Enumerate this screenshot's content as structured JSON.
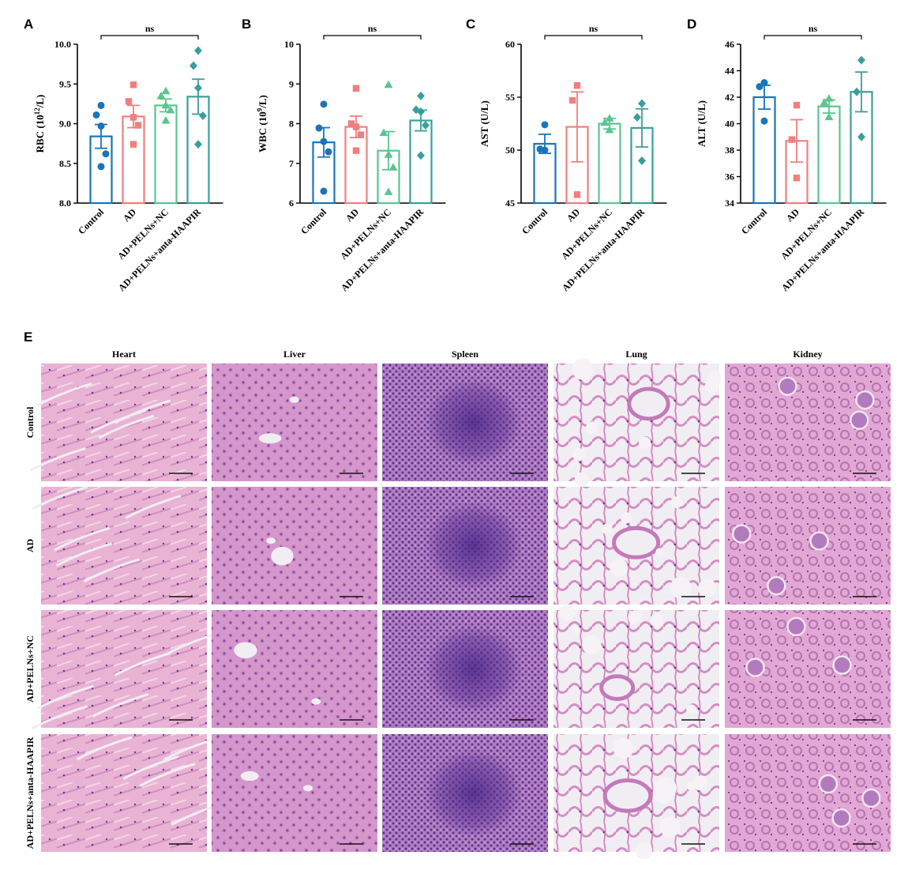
{
  "chart_data": [
    {
      "type": "bar",
      "panel": "A",
      "ylabel_main": "RBC (10",
      "ylabel_sup": "12",
      "ylabel_end": "/L)",
      "ylim": [
        8.0,
        10.0
      ],
      "yticks": [
        "8.0",
        "8.5",
        "9.0",
        "9.5",
        "10.0"
      ],
      "categories": [
        "Control",
        "AD",
        "AD+PELNs+NC",
        "AD+PELNs+anta-HAAPIR"
      ],
      "means": [
        8.84,
        9.09,
        9.23,
        9.34
      ],
      "sem": [
        0.15,
        0.14,
        0.08,
        0.22
      ],
      "points": [
        [
          9.23,
          9.11,
          8.97,
          8.62,
          8.46
        ],
        [
          9.49,
          9.28,
          9.08,
          8.98,
          8.74
        ],
        [
          9.41,
          9.35,
          9.23,
          9.17,
          9.04
        ],
        [
          9.92,
          9.73,
          9.45,
          9.1,
          8.74
        ]
      ],
      "significance": "ns"
    },
    {
      "type": "bar",
      "panel": "B",
      "ylabel_main": "WBC (10",
      "ylabel_sup": "9",
      "ylabel_end": "/L)",
      "ylim": [
        6,
        10
      ],
      "yticks": [
        "6",
        "7",
        "8",
        "9",
        "10"
      ],
      "categories": [
        "Control",
        "AD",
        "AD+PELNs+NC",
        "AD+PELNs+anta-HAAPIR"
      ],
      "means": [
        7.53,
        7.92,
        7.32,
        8.08
      ],
      "sem": [
        0.37,
        0.27,
        0.48,
        0.26
      ],
      "points": [
        [
          8.49,
          7.89,
          7.55,
          7.29,
          6.3
        ],
        [
          8.89,
          8.0,
          7.92,
          7.72,
          7.32
        ],
        [
          8.98,
          7.77,
          7.22,
          6.9,
          6.28
        ],
        [
          8.7,
          8.35,
          8.3,
          7.96,
          7.2
        ]
      ],
      "significance": "ns"
    },
    {
      "type": "bar",
      "panel": "C",
      "ylabel_main": "AST (U/L)",
      "ylabel_sup": "",
      "ylabel_end": "",
      "ylim": [
        45,
        60
      ],
      "yticks": [
        "45",
        "50",
        "55",
        "60"
      ],
      "categories": [
        "Control",
        "AD",
        "AD+PELNs+NC",
        "AD+PELNs+anta-HAAPIR"
      ],
      "means": [
        50.6,
        52.2,
        52.5,
        52.1
      ],
      "sem": [
        0.9,
        3.3,
        0.5,
        1.8
      ],
      "points": [
        [
          52.4,
          50.1,
          50.0
        ],
        [
          56.1,
          54.7,
          45.8
        ],
        [
          53.0,
          52.6,
          51.9
        ],
        [
          54.4,
          53.1,
          49.0
        ]
      ],
      "significance": "ns"
    },
    {
      "type": "bar",
      "panel": "D",
      "ylabel_main": "ALT (U/L)",
      "ylabel_sup": "",
      "ylabel_end": "",
      "ylim": [
        34,
        46
      ],
      "yticks": [
        "34",
        "36",
        "38",
        "40",
        "42",
        "44",
        "46"
      ],
      "categories": [
        "Control",
        "AD",
        "AD+PELNs+NC",
        "AD+PELNs+anta-HAAPIR"
      ],
      "means": [
        42.0,
        38.7,
        41.3,
        42.4
      ],
      "sem": [
        0.9,
        1.6,
        0.5,
        1.5
      ],
      "points": [
        [
          43.1,
          42.8,
          40.2
        ],
        [
          41.4,
          38.8,
          35.9
        ],
        [
          41.9,
          41.6,
          40.5
        ],
        [
          44.8,
          42.4,
          39.0
        ]
      ],
      "significance": "ns"
    }
  ],
  "colors": {
    "groups": [
      "#1a75b8",
      "#f07f7f",
      "#5ac58f",
      "#3a9f9c"
    ],
    "he_light": "#e9b6d8",
    "he_mid": "#c677bd",
    "he_dark": "#5a2f8f",
    "he_lumen": "#f1eef3"
  },
  "panel_e": {
    "letter": "E",
    "columns": [
      "Heart",
      "Liver",
      "Spleen",
      "Lung",
      "Kidney"
    ],
    "rows": [
      "Control",
      "AD",
      "AD+PELNs+NC",
      "AD+PELNs+anta-HAAPIR"
    ]
  }
}
